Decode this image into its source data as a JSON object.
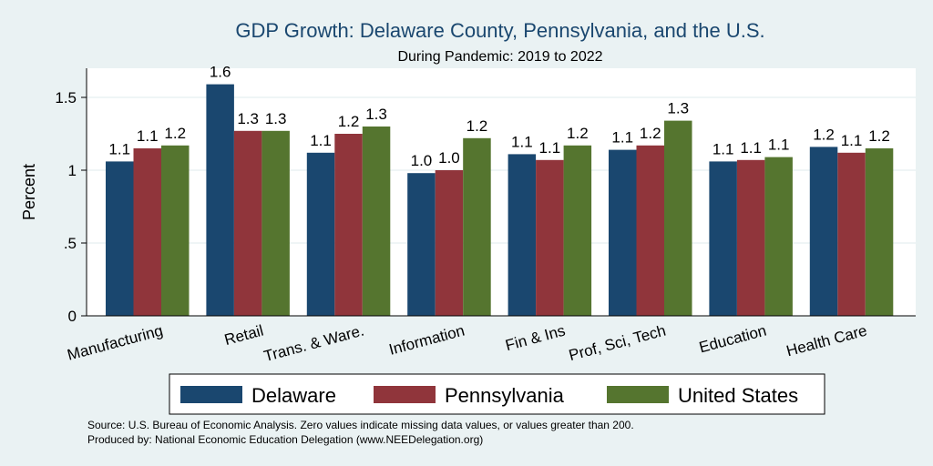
{
  "chart_data": {
    "type": "bar",
    "title": "GDP Growth: Delaware County, Pennsylvania, and the U.S.",
    "subtitle": "During Pandemic: 2019 to 2022",
    "xlabel": "",
    "ylabel": "Percent",
    "ylim": [
      0,
      1.7
    ],
    "yticks": [
      0,
      0.5,
      1,
      1.5
    ],
    "ytick_labels": [
      "0",
      ".5",
      "1",
      "1.5"
    ],
    "grid": true,
    "legend_position": "bottom",
    "categories": [
      "Manufacturing",
      "Retail",
      "Trans. & Ware.",
      "Information",
      "Fin & Ins",
      "Prof, Sci, Tech",
      "Education",
      "Health Care"
    ],
    "series": [
      {
        "name": "Delaware",
        "color": "#1a476f",
        "values": [
          1.06,
          1.59,
          1.12,
          0.98,
          1.11,
          1.14,
          1.06,
          1.16
        ],
        "labels": [
          "1.1",
          "1.6",
          "1.1",
          "1.0",
          "1.1",
          "1.1",
          "1.1",
          "1.2"
        ]
      },
      {
        "name": "Pennsylvania",
        "color": "#90353b",
        "values": [
          1.15,
          1.27,
          1.25,
          1.0,
          1.07,
          1.17,
          1.07,
          1.12
        ],
        "labels": [
          "1.1",
          "1.3",
          "1.2",
          "1.0",
          "1.1",
          "1.2",
          "1.1",
          "1.1"
        ]
      },
      {
        "name": "United States",
        "color": "#55752f",
        "values": [
          1.17,
          1.27,
          1.3,
          1.22,
          1.17,
          1.34,
          1.09,
          1.15
        ],
        "labels": [
          "1.2",
          "1.3",
          "1.3",
          "1.2",
          "1.2",
          "1.3",
          "1.1",
          "1.2"
        ]
      }
    ],
    "notes": [
      "Source: U.S. Bureau of Economic Analysis. Zero values indicate missing data values, or values greater than 200.",
      "Produced by: National Economic Education Delegation (www.NEEDelegation.org)"
    ]
  }
}
